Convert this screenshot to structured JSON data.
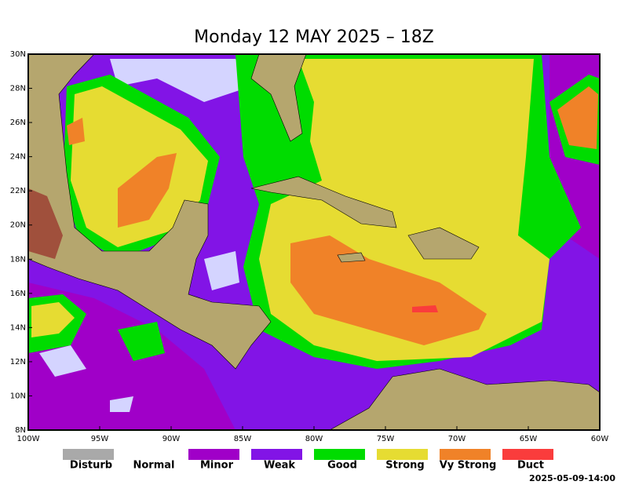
{
  "title": "Monday 12 MAY 2025 – 18Z",
  "map": {
    "lat_labels": [
      "30N",
      "28N",
      "26N",
      "24N",
      "22N",
      "20N",
      "18N",
      "16N",
      "14N",
      "12N",
      "10N",
      "8N"
    ],
    "lon_labels": [
      "100W",
      "95W",
      "90W",
      "85W",
      "80W",
      "75W",
      "70W",
      "65W",
      "60W"
    ]
  },
  "legend": [
    {
      "label": "Disturb",
      "color": "#a9a9a9"
    },
    {
      "label": "Normal"
    },
    {
      "label": "Minor",
      "color": "#a000c8"
    },
    {
      "label": "Weak",
      "color": "#8214e6"
    },
    {
      "label": "Good",
      "color": "#00dc00"
    },
    {
      "label": "Strong",
      "color": "#e6dc32"
    },
    {
      "label": "Vy Strong",
      "color": "#f08228"
    },
    {
      "label": "Duct",
      "color": "#fa3c3c"
    }
  ],
  "timestamp": "2025-05-09-14:00"
}
